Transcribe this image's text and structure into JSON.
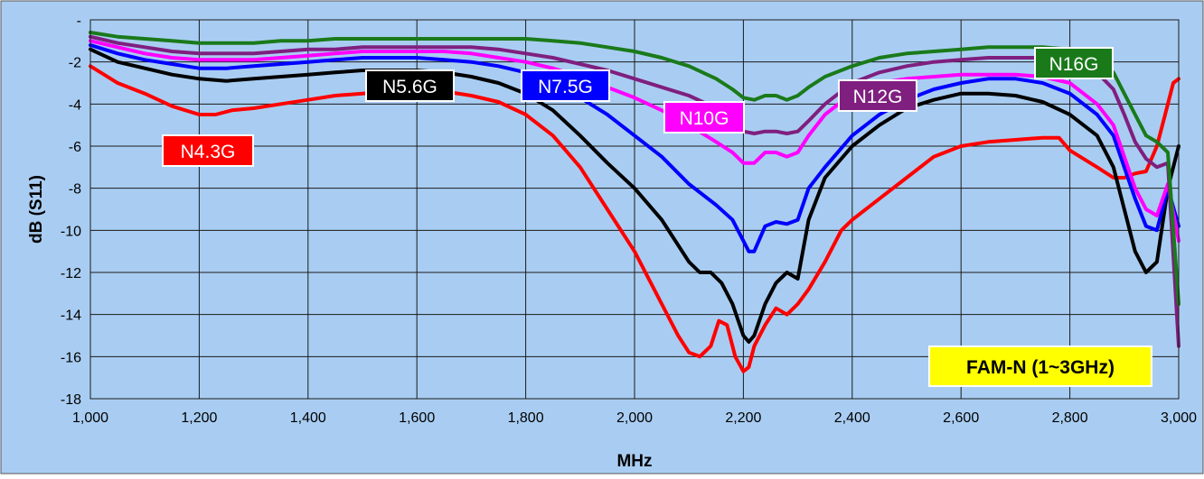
{
  "chart_data": {
    "type": "line",
    "title": "",
    "xlabel": "MHz",
    "ylabel": "dB (S11)",
    "xlim": [
      1000,
      3000
    ],
    "ylim": [
      -18,
      0
    ],
    "x_ticks": [
      1000,
      1200,
      1400,
      1600,
      1800,
      2000,
      2200,
      2400,
      2600,
      2800,
      3000
    ],
    "x_tick_labels": [
      "1,000",
      "1,200",
      "1,400",
      "1,600",
      "1,800",
      "2,000",
      "2,200",
      "2,400",
      "2,600",
      "2,800",
      "3,000"
    ],
    "y_ticks": [
      0,
      -2,
      -4,
      -6,
      -8,
      -10,
      -12,
      -14,
      -16,
      -18
    ],
    "y_tick_labels": [
      "-",
      "-2",
      "-4",
      "-6",
      "-8",
      "-10",
      "-12",
      "-14",
      "-16",
      "-18"
    ],
    "grid": true,
    "colors": {
      "plot_background": "#a9cdf2",
      "grid": "#1a1a1a"
    },
    "annotation": {
      "text": "FAM-N (1~3GHz)",
      "background": "#ffff00",
      "color": "#000000"
    },
    "series": [
      {
        "name": "N4.3G",
        "color": "#ff0000",
        "x": [
          1000,
          1050,
          1100,
          1150,
          1200,
          1230,
          1260,
          1300,
          1350,
          1400,
          1450,
          1500,
          1550,
          1600,
          1650,
          1700,
          1750,
          1800,
          1850,
          1900,
          1950,
          2000,
          2050,
          2080,
          2100,
          2120,
          2140,
          2155,
          2170,
          2185,
          2200,
          2210,
          2220,
          2240,
          2260,
          2280,
          2300,
          2320,
          2350,
          2380,
          2400,
          2450,
          2500,
          2550,
          2600,
          2650,
          2700,
          2750,
          2780,
          2800,
          2850,
          2880,
          2900,
          2920,
          2940,
          2960,
          2975,
          2990,
          3000
        ],
        "y": [
          -2.2,
          -3.0,
          -3.5,
          -4.1,
          -4.5,
          -4.5,
          -4.3,
          -4.2,
          -4.0,
          -3.8,
          -3.6,
          -3.5,
          -3.4,
          -3.3,
          -3.4,
          -3.6,
          -3.9,
          -4.5,
          -5.5,
          -7.0,
          -9.0,
          -11.0,
          -13.5,
          -15.0,
          -15.8,
          -16.0,
          -15.5,
          -14.3,
          -14.5,
          -16.0,
          -16.7,
          -16.5,
          -15.5,
          -14.5,
          -13.7,
          -14.0,
          -13.5,
          -12.8,
          -11.5,
          -10.0,
          -9.5,
          -8.5,
          -7.5,
          -6.5,
          -6.0,
          -5.8,
          -5.7,
          -5.6,
          -5.6,
          -6.2,
          -7.0,
          -7.5,
          -7.5,
          -7.3,
          -7.2,
          -6.0,
          -4.5,
          -3.0,
          -2.8
        ]
      },
      {
        "name": "N5.6G",
        "color": "#000000",
        "x": [
          1000,
          1050,
          1100,
          1150,
          1200,
          1250,
          1300,
          1350,
          1400,
          1450,
          1500,
          1550,
          1600,
          1650,
          1700,
          1750,
          1800,
          1850,
          1900,
          1950,
          2000,
          2050,
          2100,
          2120,
          2140,
          2160,
          2180,
          2200,
          2210,
          2220,
          2240,
          2260,
          2280,
          2300,
          2320,
          2350,
          2400,
          2450,
          2500,
          2550,
          2600,
          2650,
          2700,
          2750,
          2800,
          2850,
          2880,
          2900,
          2920,
          2940,
          2960,
          2980,
          3000
        ],
        "y": [
          -1.4,
          -2.0,
          -2.3,
          -2.6,
          -2.8,
          -2.9,
          -2.8,
          -2.7,
          -2.6,
          -2.5,
          -2.4,
          -2.4,
          -2.4,
          -2.5,
          -2.7,
          -3.0,
          -3.5,
          -4.3,
          -5.5,
          -6.8,
          -8.0,
          -9.5,
          -11.5,
          -12.0,
          -12.0,
          -12.5,
          -13.5,
          -15.0,
          -15.3,
          -15.0,
          -13.5,
          -12.5,
          -12.0,
          -12.3,
          -9.5,
          -7.5,
          -6.0,
          -5.0,
          -4.2,
          -3.8,
          -3.5,
          -3.5,
          -3.6,
          -3.9,
          -4.5,
          -5.5,
          -7.0,
          -9.0,
          -11.0,
          -12.0,
          -11.5,
          -8.0,
          -6.0
        ]
      },
      {
        "name": "N7.5G",
        "color": "#0000ff",
        "x": [
          1000,
          1050,
          1100,
          1150,
          1200,
          1250,
          1300,
          1350,
          1400,
          1450,
          1500,
          1550,
          1600,
          1650,
          1700,
          1750,
          1800,
          1850,
          1900,
          1950,
          2000,
          2050,
          2100,
          2150,
          2180,
          2200,
          2210,
          2220,
          2240,
          2260,
          2280,
          2300,
          2320,
          2350,
          2400,
          2450,
          2500,
          2550,
          2600,
          2650,
          2700,
          2750,
          2800,
          2850,
          2880,
          2900,
          2920,
          2940,
          2960,
          2980,
          3000
        ],
        "y": [
          -1.2,
          -1.6,
          -1.9,
          -2.1,
          -2.3,
          -2.3,
          -2.2,
          -2.1,
          -2.0,
          -1.9,
          -1.8,
          -1.8,
          -1.8,
          -1.9,
          -2.0,
          -2.2,
          -2.5,
          -3.0,
          -3.7,
          -4.5,
          -5.5,
          -6.5,
          -7.8,
          -8.8,
          -9.5,
          -10.5,
          -11.0,
          -11.0,
          -9.8,
          -9.6,
          -9.7,
          -9.5,
          -8.0,
          -7.0,
          -5.5,
          -4.5,
          -3.8,
          -3.3,
          -3.0,
          -2.8,
          -2.8,
          -3.0,
          -3.5,
          -4.5,
          -5.5,
          -7.0,
          -8.5,
          -9.8,
          -10.0,
          -8.0,
          -9.8
        ]
      },
      {
        "name": "N10G",
        "color": "#ff00ff",
        "x": [
          1000,
          1050,
          1100,
          1150,
          1200,
          1250,
          1300,
          1350,
          1400,
          1450,
          1500,
          1550,
          1600,
          1650,
          1700,
          1750,
          1800,
          1850,
          1900,
          1950,
          2000,
          2050,
          2100,
          2150,
          2180,
          2200,
          2220,
          2240,
          2260,
          2280,
          2300,
          2320,
          2350,
          2400,
          2450,
          2500,
          2550,
          2600,
          2650,
          2700,
          2750,
          2800,
          2850,
          2880,
          2900,
          2920,
          2940,
          2960,
          2980,
          3000
        ],
        "y": [
          -1.0,
          -1.3,
          -1.6,
          -1.8,
          -1.9,
          -1.9,
          -1.9,
          -1.8,
          -1.7,
          -1.6,
          -1.5,
          -1.5,
          -1.5,
          -1.5,
          -1.6,
          -1.8,
          -2.0,
          -2.3,
          -2.7,
          -3.2,
          -3.7,
          -4.3,
          -5.0,
          -5.8,
          -6.3,
          -6.8,
          -6.8,
          -6.3,
          -6.3,
          -6.5,
          -6.3,
          -5.5,
          -4.5,
          -3.5,
          -3.0,
          -2.8,
          -2.7,
          -2.6,
          -2.6,
          -2.6,
          -2.7,
          -3.0,
          -4.0,
          -5.0,
          -6.5,
          -8.0,
          -9.0,
          -9.3,
          -7.8,
          -10.5
        ]
      },
      {
        "name": "N12G",
        "color": "#7f1f7f",
        "x": [
          1000,
          1050,
          1100,
          1150,
          1200,
          1250,
          1300,
          1350,
          1400,
          1450,
          1500,
          1550,
          1600,
          1650,
          1700,
          1750,
          1800,
          1850,
          1900,
          1950,
          2000,
          2050,
          2100,
          2150,
          2180,
          2200,
          2220,
          2240,
          2260,
          2280,
          2300,
          2320,
          2350,
          2400,
          2450,
          2500,
          2550,
          2600,
          2650,
          2700,
          2750,
          2800,
          2850,
          2880,
          2900,
          2920,
          2940,
          2960,
          2980,
          3000
        ],
        "y": [
          -0.8,
          -1.1,
          -1.3,
          -1.5,
          -1.6,
          -1.6,
          -1.6,
          -1.5,
          -1.4,
          -1.4,
          -1.3,
          -1.3,
          -1.3,
          -1.3,
          -1.3,
          -1.4,
          -1.6,
          -1.8,
          -2.1,
          -2.4,
          -2.8,
          -3.2,
          -3.6,
          -4.2,
          -4.8,
          -5.3,
          -5.4,
          -5.3,
          -5.3,
          -5.4,
          -5.3,
          -4.8,
          -4.0,
          -3.0,
          -2.5,
          -2.2,
          -2.0,
          -1.9,
          -1.8,
          -1.8,
          -1.8,
          -2.0,
          -2.5,
          -3.3,
          -4.5,
          -5.8,
          -6.6,
          -7.0,
          -6.8,
          -15.5
        ]
      },
      {
        "name": "N16G",
        "color": "#1a7a1a",
        "x": [
          1000,
          1050,
          1100,
          1150,
          1200,
          1250,
          1300,
          1350,
          1400,
          1450,
          1500,
          1550,
          1600,
          1650,
          1700,
          1750,
          1800,
          1850,
          1900,
          1950,
          2000,
          2050,
          2100,
          2150,
          2180,
          2200,
          2220,
          2240,
          2260,
          2280,
          2300,
          2320,
          2350,
          2400,
          2450,
          2500,
          2550,
          2600,
          2650,
          2700,
          2750,
          2800,
          2850,
          2880,
          2900,
          2920,
          2940,
          2960,
          2980,
          3000
        ],
        "y": [
          -0.6,
          -0.8,
          -0.9,
          -1.0,
          -1.1,
          -1.1,
          -1.1,
          -1.0,
          -1.0,
          -0.9,
          -0.9,
          -0.9,
          -0.9,
          -0.9,
          -0.9,
          -0.9,
          -0.9,
          -1.0,
          -1.1,
          -1.3,
          -1.5,
          -1.8,
          -2.2,
          -2.8,
          -3.3,
          -3.7,
          -3.8,
          -3.6,
          -3.6,
          -3.8,
          -3.6,
          -3.2,
          -2.7,
          -2.2,
          -1.8,
          -1.6,
          -1.5,
          -1.4,
          -1.3,
          -1.3,
          -1.3,
          -1.4,
          -1.8,
          -2.5,
          -3.5,
          -4.5,
          -5.5,
          -5.8,
          -6.3,
          -13.5
        ]
      }
    ]
  }
}
